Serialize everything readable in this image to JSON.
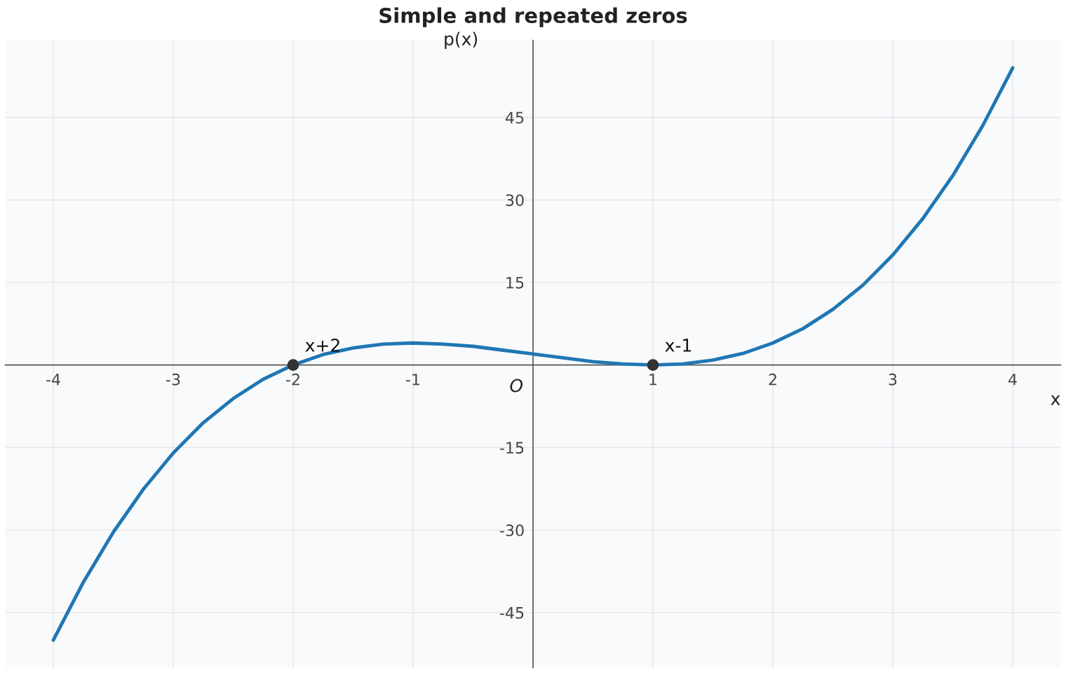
{
  "chart_data": {
    "type": "line",
    "title": "Simple and repeated zeros",
    "xlabel": "x",
    "ylabel": "p(x)",
    "xlim": [
      -4.4,
      4.4
    ],
    "ylim": [
      -55,
      59
    ],
    "xticks": [
      -4,
      -3,
      -2,
      -1,
      1,
      2,
      3,
      4
    ],
    "yticks": [
      -45,
      -30,
      -15,
      15,
      30,
      45
    ],
    "grid": true,
    "series": [
      {
        "color": "#1f77b4",
        "x": [
          -4,
          -3.75,
          -3.5,
          -3.25,
          -3,
          -2.75,
          -2.5,
          -2.25,
          -2,
          -1.75,
          -1.5,
          -1.25,
          -1,
          -0.75,
          -0.5,
          -0.25,
          0,
          0.25,
          0.5,
          0.75,
          1,
          1.25,
          1.5,
          1.75,
          2,
          2.25,
          2.5,
          2.75,
          3,
          3.25,
          3.5,
          3.75,
          4
        ],
        "values": [
          -50,
          -39.5,
          -30.4,
          -22.6,
          -16,
          -10.5,
          -6.1,
          -2.6,
          0,
          1.9,
          3.1,
          3.8,
          4,
          3.8,
          3.4,
          2.7,
          2,
          1.3,
          0.6,
          0.2,
          0,
          0.2,
          0.9,
          2.1,
          4,
          6.6,
          10.1,
          14.5,
          20,
          26.6,
          34.4,
          43.5,
          54
        ]
      },
      {
        "type": "scatter",
        "color": "#333333",
        "marker": "circle",
        "x": [
          -2,
          1
        ],
        "values": [
          0,
          0
        ]
      }
    ],
    "annotations": [
      {
        "text": "x+2",
        "x": -2,
        "y": 0
      },
      {
        "text": "x-1",
        "x": 1,
        "y": 0
      },
      "O"
    ]
  }
}
